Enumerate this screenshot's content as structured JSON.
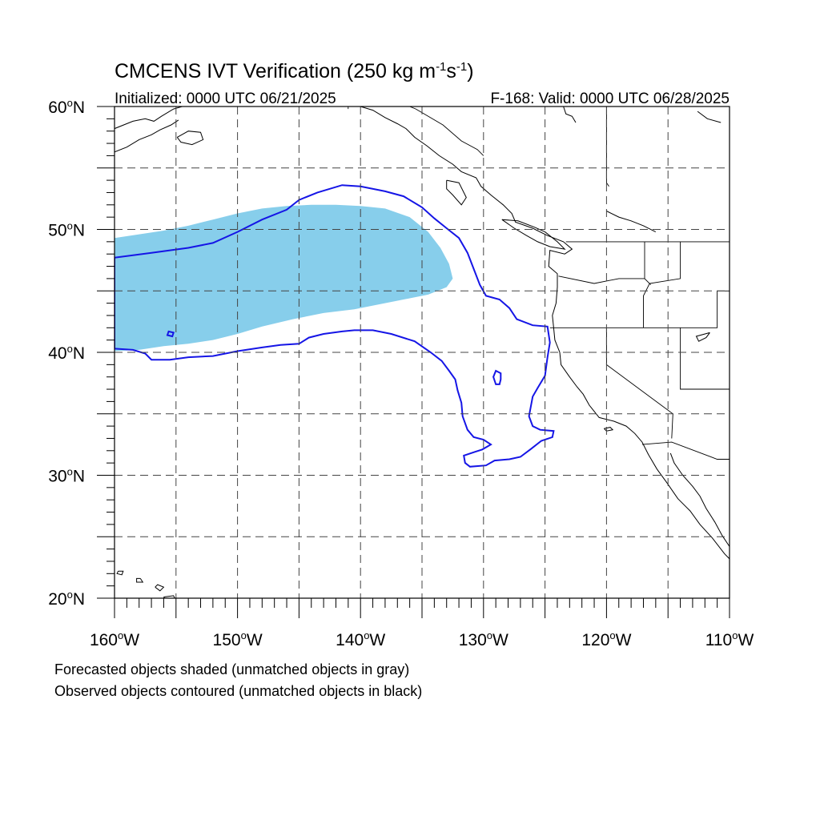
{
  "title": {
    "main": "CMCENS IVT Verification (250 kg m",
    "sup1": "-1",
    "mid": "s",
    "sup2": "-1",
    "end": ")"
  },
  "initialized": "Initialized: 0000 UTC 06/21/2025",
  "valid": "F-168: Valid: 0000 UTC 06/28/2025",
  "map": {
    "lon_min": -160,
    "lon_max": -110,
    "lat_min": 20,
    "lat_max": 60,
    "grid": true,
    "shade_color": "#87CEEB",
    "contour_color": "#1515E6",
    "coast_color": "#000000"
  },
  "lat_labels": [
    {
      "lat": 60,
      "deg": "60",
      "hemi": "N"
    },
    {
      "lat": 50,
      "deg": "50",
      "hemi": "N"
    },
    {
      "lat": 40,
      "deg": "40",
      "hemi": "N"
    },
    {
      "lat": 30,
      "deg": "30",
      "hemi": "N"
    },
    {
      "lat": 20,
      "deg": "20",
      "hemi": "N"
    }
  ],
  "lon_labels": [
    {
      "lon": -160,
      "deg": "160",
      "hemi": "W"
    },
    {
      "lon": -150,
      "deg": "150",
      "hemi": "W"
    },
    {
      "lon": -140,
      "deg": "140",
      "hemi": "W"
    },
    {
      "lon": -130,
      "deg": "130",
      "hemi": "W"
    },
    {
      "lon": -120,
      "deg": "120",
      "hemi": "W"
    },
    {
      "lon": -110,
      "deg": "110",
      "hemi": "W"
    }
  ],
  "forecast_objects": [
    [
      [
        -160,
        49.3
      ],
      [
        -158,
        49.6
      ],
      [
        -156,
        49.9
      ],
      [
        -154,
        50.3
      ],
      [
        -152,
        50.8
      ],
      [
        -150,
        51.3
      ],
      [
        -148,
        51.7
      ],
      [
        -146,
        51.9
      ],
      [
        -144,
        52
      ],
      [
        -142,
        52
      ],
      [
        -140,
        51.9
      ],
      [
        -138,
        51.7
      ],
      [
        -136,
        51
      ],
      [
        -134.5,
        49.8
      ],
      [
        -133.5,
        48.5
      ],
      [
        -132.8,
        47.2
      ],
      [
        -132.5,
        46
      ],
      [
        -133,
        45.3
      ],
      [
        -134.5,
        44.7
      ],
      [
        -136.5,
        44.3
      ],
      [
        -138.5,
        43.9
      ],
      [
        -140.5,
        43.5
      ],
      [
        -143,
        43.2
      ],
      [
        -145.5,
        42.7
      ],
      [
        -148,
        42.1
      ],
      [
        -150,
        41.5
      ],
      [
        -152,
        41
      ],
      [
        -154,
        40.7
      ],
      [
        -156,
        40.5
      ],
      [
        -158,
        40.2
      ],
      [
        -160,
        40.1
      ]
    ]
  ],
  "observed_objects": [
    [
      [
        -160,
        47.7
      ],
      [
        -157,
        48.1
      ],
      [
        -154,
        48.5
      ],
      [
        -152,
        48.9
      ],
      [
        -150,
        49.8
      ],
      [
        -148,
        50.8
      ],
      [
        -146,
        51.6
      ],
      [
        -145,
        52.4
      ],
      [
        -143.5,
        53
      ],
      [
        -141.5,
        53.6
      ],
      [
        -140,
        53.5
      ],
      [
        -138,
        53.1
      ],
      [
        -136.5,
        52.7
      ],
      [
        -135,
        51.8
      ],
      [
        -134,
        50.9
      ],
      [
        -133,
        50.1
      ],
      [
        -132,
        49.3
      ],
      [
        -131.3,
        48.1
      ],
      [
        -130.8,
        46.8
      ],
      [
        -130.3,
        45.5
      ],
      [
        -129.8,
        44.6
      ],
      [
        -128.7,
        44.3
      ],
      [
        -127.9,
        43.6
      ],
      [
        -127.3,
        42.7
      ],
      [
        -126,
        42.2
      ],
      [
        -124.8,
        42.1
      ],
      [
        -124.6,
        40.8
      ],
      [
        -124.8,
        39.6
      ],
      [
        -125,
        38.1
      ],
      [
        -125.6,
        37.1
      ],
      [
        -126,
        36.4
      ],
      [
        -126.3,
        34.8
      ],
      [
        -126,
        34
      ],
      [
        -125.4,
        33.7
      ],
      [
        -124.3,
        33.6
      ],
      [
        -124.4,
        33.1
      ],
      [
        -125.3,
        32.8
      ],
      [
        -126.2,
        32.1
      ],
      [
        -127,
        31.5
      ],
      [
        -127.9,
        31.3
      ],
      [
        -129.1,
        31.2
      ],
      [
        -129.8,
        30.8
      ],
      [
        -131.1,
        30.7
      ],
      [
        -131.5,
        31
      ],
      [
        -131.6,
        31.6
      ],
      [
        -130.7,
        31.9
      ],
      [
        -130.1,
        32.1
      ],
      [
        -129.4,
        32.5
      ],
      [
        -130,
        32.9
      ],
      [
        -130.8,
        33.1
      ],
      [
        -131.3,
        33.7
      ],
      [
        -131.7,
        34.8
      ],
      [
        -131.8,
        35.9
      ],
      [
        -132.1,
        36.9
      ],
      [
        -132.3,
        37.8
      ],
      [
        -132.8,
        38.5
      ],
      [
        -133.4,
        39.3
      ],
      [
        -134.3,
        40
      ],
      [
        -135.6,
        40.9
      ],
      [
        -137.5,
        41.5
      ],
      [
        -139,
        41.8
      ],
      [
        -140.5,
        41.8
      ],
      [
        -141.5,
        41.7
      ],
      [
        -143,
        41.5
      ],
      [
        -144.2,
        41.2
      ],
      [
        -145,
        40.7
      ],
      [
        -146.5,
        40.6
      ],
      [
        -148,
        40.4
      ],
      [
        -150,
        40.1
      ],
      [
        -152,
        39.7
      ],
      [
        -154,
        39.6
      ],
      [
        -155.5,
        39.4
      ],
      [
        -157,
        39.4
      ],
      [
        -157.5,
        39.9
      ],
      [
        -158.5,
        40.2
      ],
      [
        -160,
        40.3
      ]
    ],
    [
      [
        -155.2,
        41.6
      ],
      [
        -155.6,
        41.7
      ],
      [
        -155.7,
        41.4
      ],
      [
        -155.3,
        41.3
      ]
    ],
    [
      [
        -128.6,
        38.3
      ],
      [
        -129,
        38.5
      ],
      [
        -129.2,
        38
      ],
      [
        -129,
        37.4
      ],
      [
        -128.7,
        37.4
      ],
      [
        -128.6,
        37.8
      ]
    ]
  ],
  "coastlines": [
    [
      [
        -160,
        58.2
      ],
      [
        -158.5,
        58.8
      ],
      [
        -157.5,
        59
      ],
      [
        -156.8,
        58.8
      ],
      [
        -156.2,
        59.2
      ],
      [
        -155.2,
        59.8
      ],
      [
        -154.5,
        60
      ]
    ],
    [
      [
        -160,
        56.3
      ],
      [
        -159,
        56.7
      ],
      [
        -158,
        57.3
      ],
      [
        -157,
        57.7
      ],
      [
        -156.3,
        58.1
      ],
      [
        -155.4,
        58.5
      ],
      [
        -154.8,
        58.9
      ]
    ],
    [
      [
        -154.9,
        57.5
      ],
      [
        -154,
        58
      ],
      [
        -153,
        57.9
      ],
      [
        -152.8,
        57.3
      ],
      [
        -153.7,
        56.9
      ],
      [
        -154.6,
        57.1
      ],
      [
        -154.9,
        57.5
      ]
    ],
    [
      [
        -140,
        60
      ],
      [
        -139,
        59.7
      ],
      [
        -138,
        59.1
      ],
      [
        -137,
        58.6
      ],
      [
        -136.3,
        58.2
      ],
      [
        -135.6,
        57.5
      ],
      [
        -134.6,
        56.8
      ],
      [
        -133.6,
        56
      ],
      [
        -132.5,
        55.3
      ],
      [
        -131.8,
        54.7
      ],
      [
        -130.6,
        54.2
      ],
      [
        -130.2,
        53.5
      ],
      [
        -129.4,
        52.8
      ],
      [
        -128.4,
        52
      ],
      [
        -127.7,
        51.3
      ],
      [
        -127.4,
        50.6
      ],
      [
        -126,
        50.1
      ],
      [
        -124.8,
        49.5
      ],
      [
        -123.5,
        49
      ],
      [
        -122.8,
        48.4
      ],
      [
        -123.4,
        48
      ],
      [
        -124.6,
        48.3
      ],
      [
        -124.7,
        47
      ],
      [
        -124,
        46.4
      ],
      [
        -124,
        45.3
      ],
      [
        -124.1,
        44
      ],
      [
        -124.4,
        43
      ],
      [
        -124.3,
        42
      ],
      [
        -124.2,
        41
      ],
      [
        -123.8,
        40
      ],
      [
        -123.7,
        39
      ],
      [
        -123,
        38
      ],
      [
        -122.4,
        37.2
      ],
      [
        -121.9,
        36.6
      ],
      [
        -121.4,
        35.7
      ],
      [
        -120.6,
        34.7
      ],
      [
        -119.4,
        34.4
      ],
      [
        -118.4,
        34
      ],
      [
        -117.7,
        33.4
      ],
      [
        -117.1,
        32.7
      ],
      [
        -116.6,
        31.7
      ],
      [
        -115.9,
        30.5
      ],
      [
        -115.1,
        29.4
      ],
      [
        -114.2,
        28.1
      ],
      [
        -113.2,
        27.1
      ],
      [
        -112.4,
        26
      ],
      [
        -111.4,
        24.9
      ],
      [
        -110.4,
        23.6
      ],
      [
        -110,
        23.2
      ]
    ],
    [
      [
        -114.8,
        31.8
      ],
      [
        -114.5,
        31
      ],
      [
        -113.8,
        30
      ],
      [
        -113,
        29.1
      ],
      [
        -112.4,
        28.3
      ],
      [
        -111.9,
        27.3
      ],
      [
        -111.2,
        26.2
      ],
      [
        -110.6,
        25.1
      ],
      [
        -110,
        24.2
      ]
    ],
    [
      [
        -133,
        54
      ],
      [
        -132,
        53.8
      ],
      [
        -131.4,
        52.6
      ],
      [
        -131.8,
        52
      ],
      [
        -132.5,
        52.8
      ],
      [
        -133,
        53.3
      ],
      [
        -133,
        54
      ]
    ],
    [
      [
        -128.5,
        50.8
      ],
      [
        -127.2,
        50.7
      ],
      [
        -125.9,
        50.2
      ],
      [
        -125,
        49.8
      ],
      [
        -124,
        49
      ],
      [
        -123.4,
        48.4
      ],
      [
        -124.6,
        48.6
      ],
      [
        -125.6,
        49
      ],
      [
        -126.5,
        49.5
      ],
      [
        -127.5,
        50.1
      ],
      [
        -128.5,
        50.8
      ]
    ],
    [
      [
        -156,
        20.1
      ],
      [
        -155.6,
        19.6
      ],
      [
        -155.9,
        19
      ],
      [
        -155.3,
        19.2
      ],
      [
        -154.9,
        19.6
      ],
      [
        -155.2,
        20.2
      ],
      [
        -156,
        20.1
      ]
    ],
    [
      [
        -156.7,
        20.9
      ],
      [
        -156.3,
        20.6
      ],
      [
        -156,
        20.9
      ],
      [
        -156.5,
        21.1
      ],
      [
        -156.7,
        20.9
      ]
    ],
    [
      [
        -157.9,
        21.6
      ],
      [
        -157.7,
        21.3
      ],
      [
        -158.2,
        21.3
      ],
      [
        -158.2,
        21.6
      ],
      [
        -157.9,
        21.6
      ]
    ],
    [
      [
        -159.7,
        22.2
      ],
      [
        -159.3,
        22.2
      ],
      [
        -159.4,
        21.9
      ],
      [
        -159.8,
        22
      ],
      [
        -159.7,
        22.2
      ]
    ],
    [
      [
        -123.5,
        60
      ],
      [
        -123.3,
        59.4
      ],
      [
        -122.8,
        59.2
      ],
      [
        -122.5,
        58.7
      ]
    ],
    [
      [
        -120,
        51.5
      ],
      [
        -119,
        51
      ],
      [
        -118,
        50.7
      ],
      [
        -117,
        50.3
      ],
      [
        -116,
        49.8
      ]
    ],
    [
      [
        -112.6,
        59.6
      ],
      [
        -111.8,
        59
      ],
      [
        -110.7,
        58.7
      ]
    ],
    [
      [
        -111.6,
        41.6
      ],
      [
        -111.9,
        41.2
      ],
      [
        -112.5,
        40.9
      ],
      [
        -112.7,
        41.3
      ],
      [
        -111.6,
        41.6
      ]
    ],
    [
      [
        -120.2,
        33.8
      ],
      [
        -119.7,
        33.9
      ],
      [
        -119.5,
        33.7
      ],
      [
        -120,
        33.6
      ],
      [
        -120.2,
        33.8
      ]
    ]
  ],
  "borders": [
    [
      [
        -123.3,
        49
      ],
      [
        -110,
        49
      ]
    ],
    [
      [
        -124.6,
        42
      ],
      [
        -111,
        42
      ],
      [
        -111,
        45
      ],
      [
        -110,
        45
      ]
    ],
    [
      [
        -120,
        42
      ],
      [
        -120,
        39
      ],
      [
        -114.6,
        35
      ],
      [
        -114.7,
        33
      ]
    ],
    [
      [
        -117.1,
        32.5
      ],
      [
        -114.7,
        32.7
      ],
      [
        -111,
        31.3
      ],
      [
        -110,
        31.3
      ]
    ],
    [
      [
        -114,
        49
      ],
      [
        -114,
        46
      ],
      [
        -116.5,
        45.6
      ],
      [
        -117,
        44.6
      ],
      [
        -117,
        42
      ]
    ],
    [
      [
        -116.9,
        49
      ],
      [
        -116.9,
        46
      ],
      [
        -116.4,
        45.5
      ]
    ],
    [
      [
        -123.9,
        46.2
      ],
      [
        -121,
        45.6
      ],
      [
        -119,
        46
      ],
      [
        -116.9,
        46
      ]
    ],
    [
      [
        -114,
        42
      ],
      [
        -114,
        37
      ],
      [
        -110,
        37
      ]
    ],
    [
      [
        -141,
        60
      ],
      [
        -141,
        59.8
      ]
    ],
    [
      [
        -130,
        56
      ],
      [
        -130.5,
        56.5
      ],
      [
        -131.8,
        57.2
      ],
      [
        -133.3,
        58.5
      ],
      [
        -135.5,
        59.8
      ],
      [
        -136,
        60
      ]
    ],
    [
      [
        -120,
        60
      ],
      [
        -120,
        53.8
      ],
      [
        -119.8,
        53.5
      ]
    ]
  ],
  "footnotes": [
    "Forecasted objects shaded (unmatched objects in gray)",
    "Observed objects contoured (unmatched objects in black)"
  ]
}
